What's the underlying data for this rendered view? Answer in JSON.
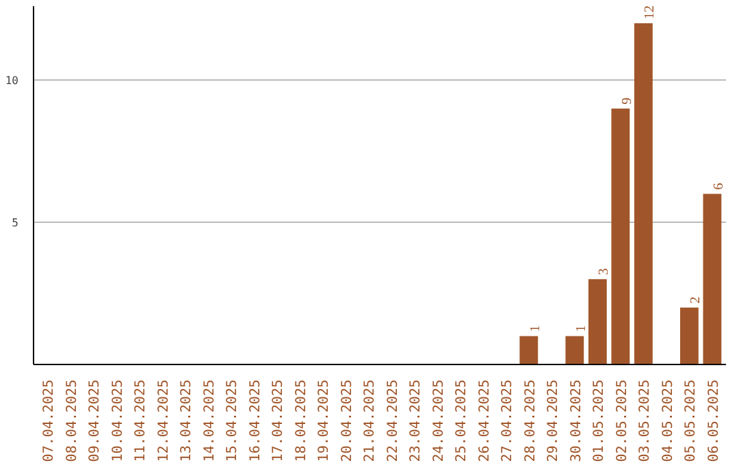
{
  "chart_data": {
    "type": "bar",
    "categories": [
      "07.04.2025",
      "08.04.2025",
      "09.04.2025",
      "10.04.2025",
      "11.04.2025",
      "12.04.2025",
      "13.04.2025",
      "14.04.2025",
      "15.04.2025",
      "16.04.2025",
      "17.04.2025",
      "18.04.2025",
      "19.04.2025",
      "20.04.2025",
      "21.04.2025",
      "22.04.2025",
      "23.04.2025",
      "24.04.2025",
      "25.04.2025",
      "26.04.2025",
      "27.04.2025",
      "28.04.2025",
      "29.04.2025",
      "30.04.2025",
      "01.05.2025",
      "02.05.2025",
      "03.05.2025",
      "04.05.2025",
      "05.05.2025",
      "06.05.2025"
    ],
    "values": [
      0,
      0,
      0,
      0,
      0,
      0,
      0,
      0,
      0,
      0,
      0,
      0,
      0,
      0,
      0,
      0,
      0,
      0,
      0,
      0,
      0,
      1,
      0,
      1,
      3,
      9,
      12,
      0,
      2,
      6
    ],
    "value_labels": [
      null,
      null,
      null,
      null,
      null,
      null,
      null,
      null,
      null,
      null,
      null,
      null,
      null,
      null,
      null,
      null,
      null,
      null,
      null,
      null,
      null,
      "1",
      null,
      "1",
      "3",
      "9",
      "12",
      null,
      "2",
      "6"
    ],
    "color": "#a0562a",
    "ylim": [
      0,
      12.6
    ],
    "yticks": [
      5,
      10
    ],
    "grid": "y"
  }
}
